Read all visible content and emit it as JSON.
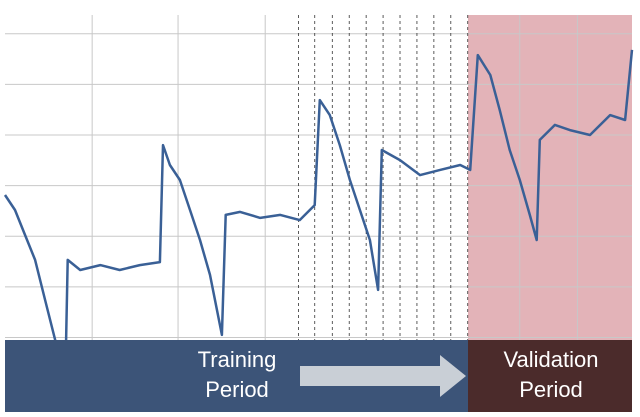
{
  "chart_data": {
    "type": "line",
    "annotations": [
      [
        "Training",
        "Period"
      ],
      [
        "Validation",
        "Period"
      ]
    ],
    "x": [
      0,
      1.6,
      3.2,
      4.8,
      6.4,
      8.0,
      9.6,
      10.0,
      12.0,
      15.2,
      18.3,
      21.5,
      24.7,
      25.2,
      26.3,
      27.9,
      29.5,
      31.1,
      32.7,
      34.6,
      35.2,
      37.5,
      40.7,
      43.9,
      47.0,
      49.4,
      50.2,
      51.8,
      53.4,
      55.0,
      56.6,
      58.2,
      59.5,
      60.1,
      63.0,
      66.2,
      69.4,
      72.6,
      74.2,
      75.4,
      77.4,
      78.9,
      80.5,
      82.1,
      83.7,
      84.8,
      85.3,
      87.7,
      90.1,
      93.3,
      96.5,
      98.9,
      100
    ],
    "series": [
      {
        "color": "#3a6096",
        "values": [
          52,
          48,
          41.3,
          34.7,
          24,
          13.3,
          1.3,
          34.7,
          32,
          33.3,
          32,
          33.3,
          34.1,
          65.3,
          60,
          56,
          48,
          40,
          30.7,
          14.7,
          46.7,
          47.5,
          45.9,
          46.7,
          45.3,
          49.3,
          77.3,
          73.3,
          65.3,
          56,
          48,
          40,
          26.7,
          64,
          61.3,
          57.3,
          58.7,
          60,
          58.7,
          89.3,
          84,
          74.7,
          64,
          56,
          46.7,
          40,
          66.7,
          70.7,
          69.3,
          68,
          73.3,
          72,
          90.7
        ]
      }
    ],
    "xlim": [
      0,
      100
    ],
    "ylim": [
      0,
      100
    ],
    "xticks": [
      13.9,
      27.6,
      41.5,
      82.1,
      91.3
    ],
    "xticks_minor": [
      46.8,
      49.4,
      52.2,
      54.9,
      57.6,
      60.3,
      63.0,
      65.7,
      68.4,
      71.1,
      73.8
    ],
    "yticks": [
      14,
      27.5,
      41,
      54.5,
      68,
      81.5,
      95
    ],
    "grid": true
  }
}
